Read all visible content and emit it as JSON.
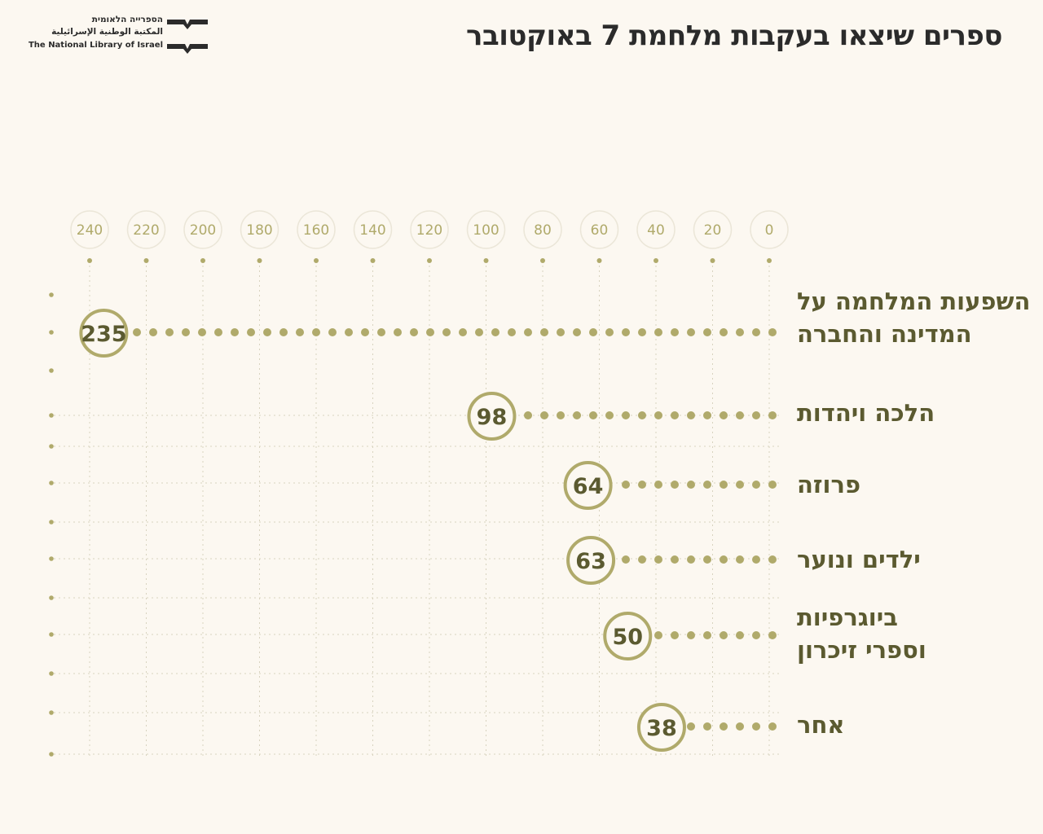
{
  "title": "ספרים שיצאו בעקבות מלחמת 7 באוקטובר",
  "logo": {
    "line1": "הספרייה הלאומית",
    "line2": "المكتبة الوطنية الإسرائيلية",
    "line3": "The National Library of Israel"
  },
  "colors": {
    "accent": "#b0aa6b",
    "label": "#5b5a30",
    "background": "#fcf8f1"
  },
  "chart_data": {
    "type": "bar",
    "orientation": "horizontal-reversed",
    "title": "ספרים שיצאו בעקבות מלחמת 7 באוקטובר",
    "xlim": [
      0,
      240
    ],
    "xticks": [
      "0",
      "20",
      "40",
      "60",
      "80",
      "100",
      "120",
      "140",
      "160",
      "180",
      "200",
      "220",
      "240"
    ],
    "categories": [
      [
        "השפעות המלחמה על",
        "המדינה והחברה"
      ],
      [
        "הלכה ויהדות"
      ],
      [
        "פרוזה"
      ],
      [
        "ילדים ונוער"
      ],
      [
        "ביוגרפיות",
        "וספרי זיכרון"
      ],
      [
        "אחר"
      ]
    ],
    "values": [
      235,
      98,
      64,
      63,
      50,
      38
    ],
    "value_labels": [
      "235",
      "98",
      "64",
      "63",
      "50",
      "38"
    ]
  }
}
